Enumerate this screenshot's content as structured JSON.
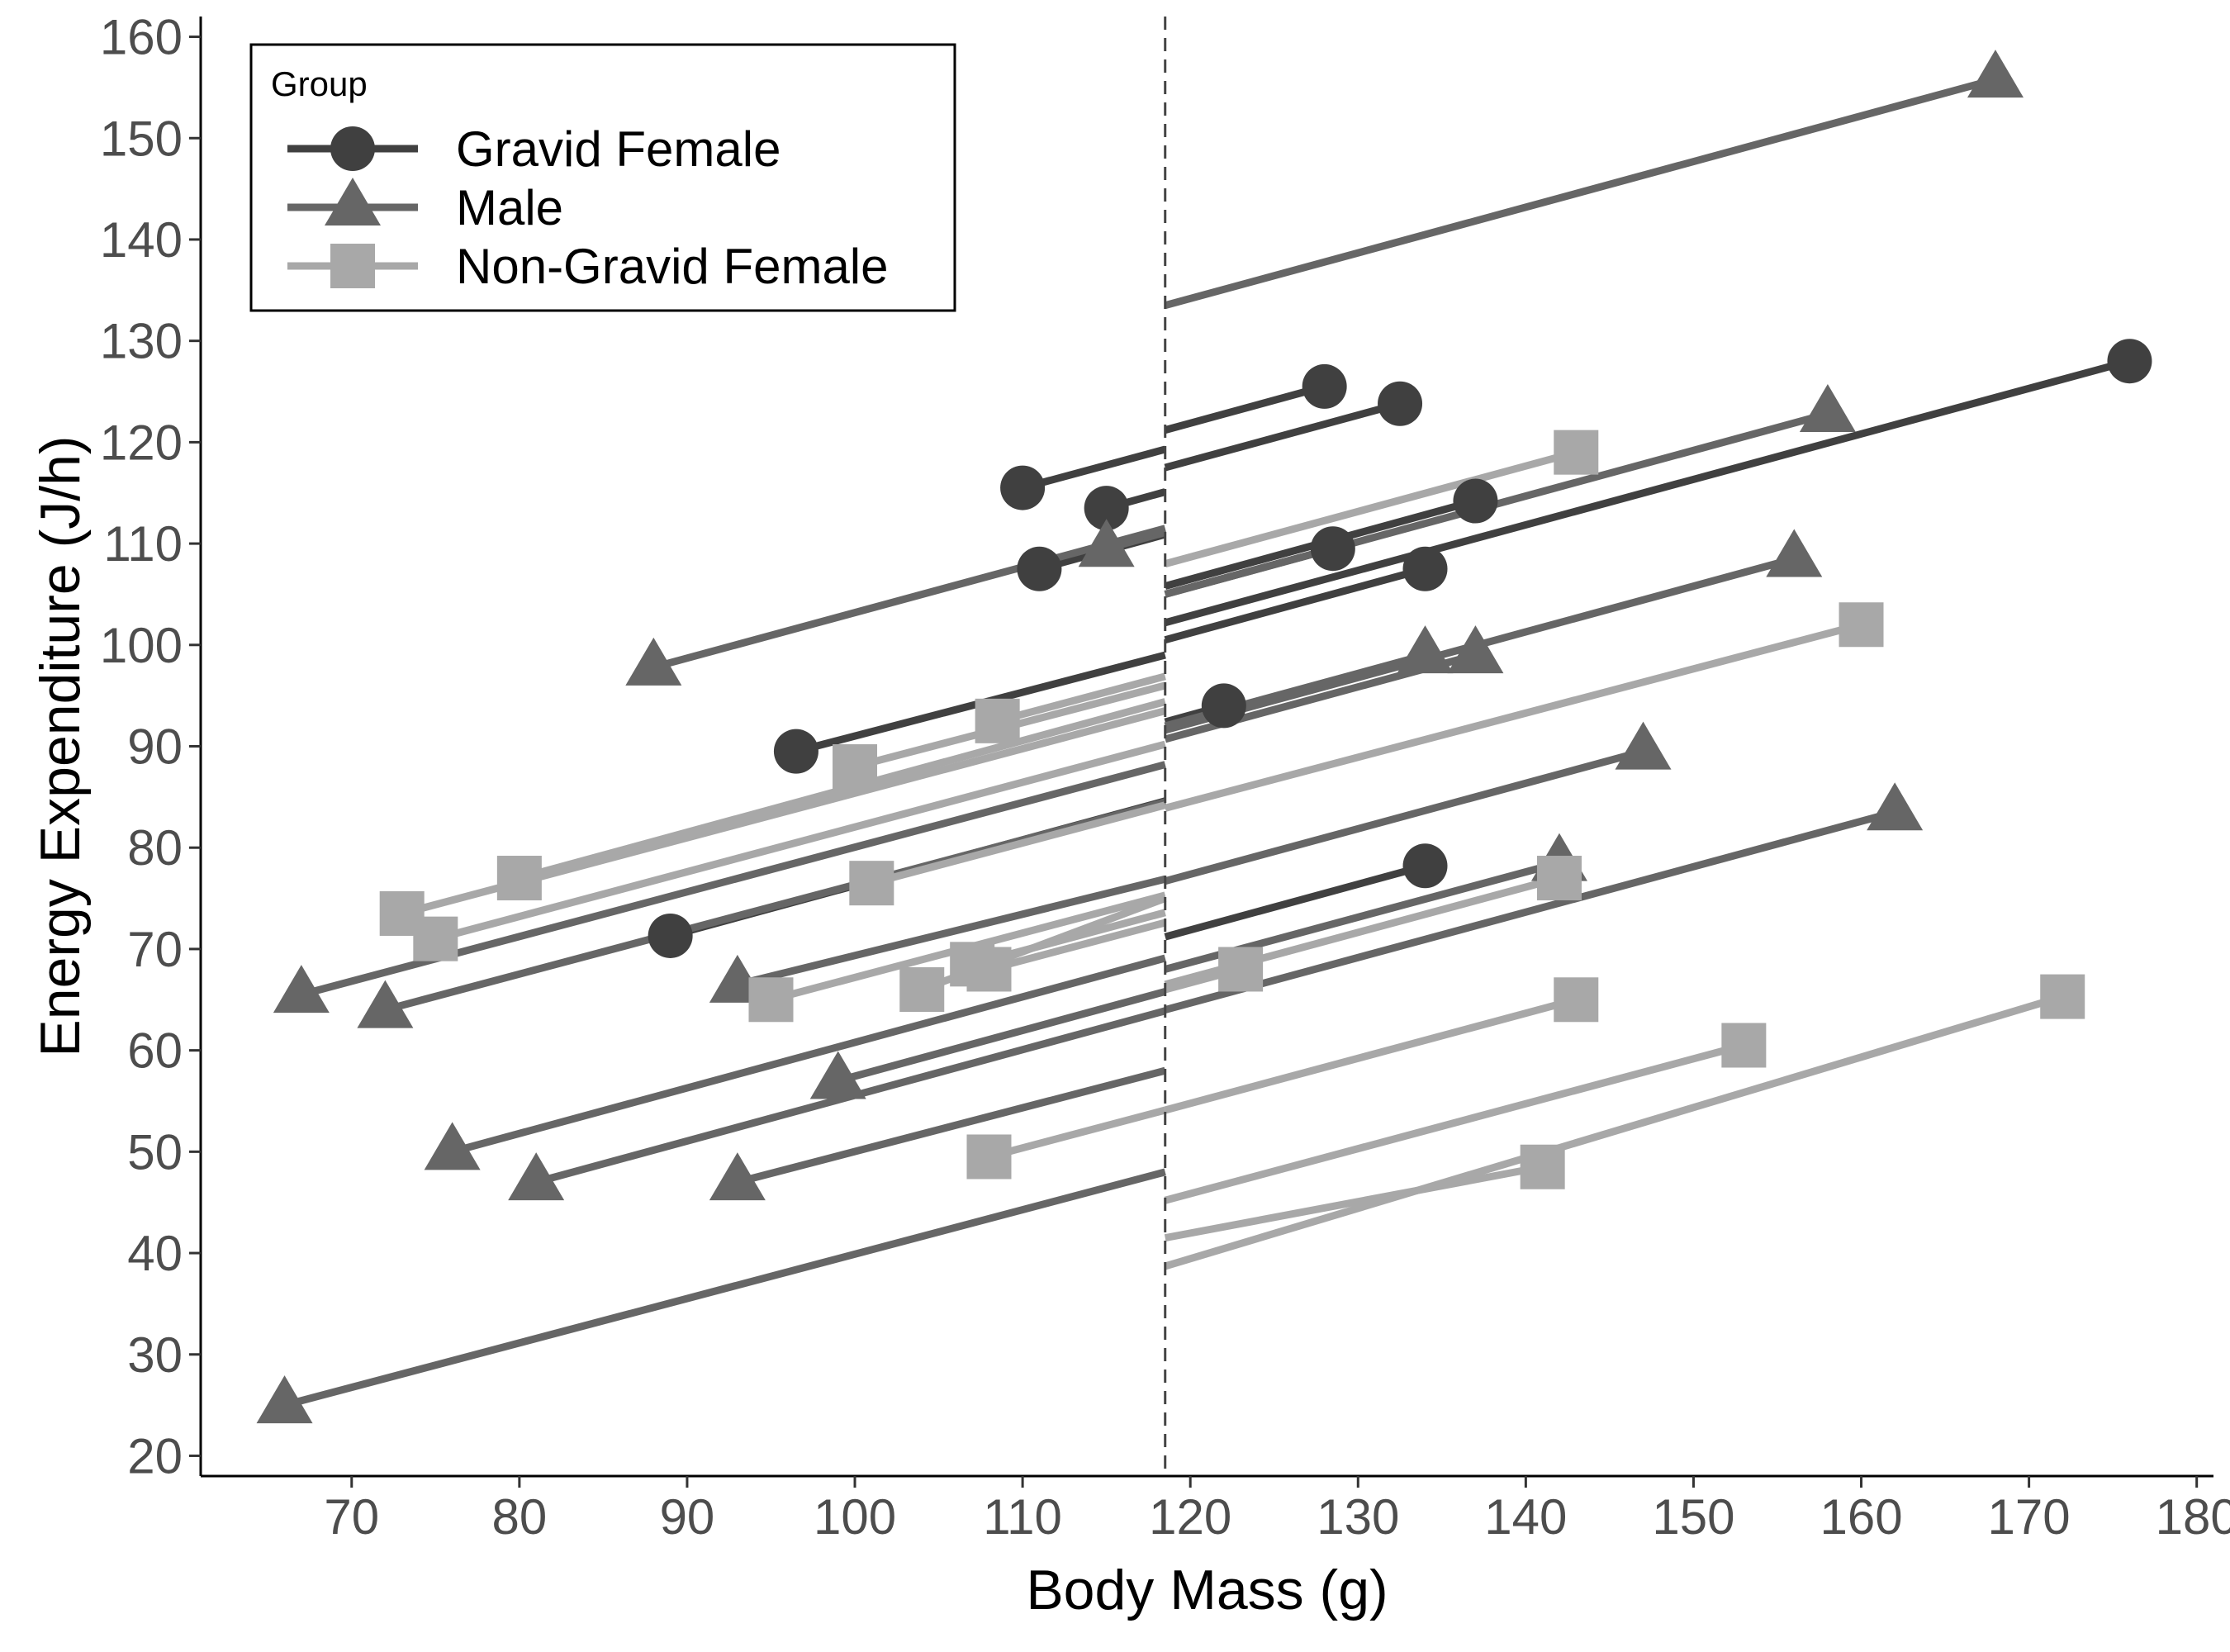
{
  "chart_data": {
    "type": "line",
    "xlabel": "Body Mass (g)",
    "ylabel": "Energy Expenditure (J/h)",
    "xlim": [
      61,
      181
    ],
    "ylim": [
      18,
      162
    ],
    "xticks": [
      70,
      80,
      90,
      100,
      110,
      120,
      130,
      140,
      150,
      160,
      170,
      180
    ],
    "yticks": [
      20,
      30,
      40,
      50,
      60,
      70,
      80,
      90,
      100,
      110,
      120,
      130,
      140,
      150,
      160
    ],
    "reference_line_x": 118.5,
    "grid": false,
    "legend": {
      "title": "Group",
      "placement": "top-left",
      "entries": [
        "Gravid Female",
        "Male",
        "Non-Gravid Female"
      ]
    },
    "series": [
      {
        "name": "Gravid Female",
        "color": "#404040",
        "marker": "circle",
        "segments": [
          {
            "point": [
              128,
              125.5
            ],
            "line_end": [
              118.5,
              121.2
            ]
          },
          {
            "point": [
              132.5,
              123.8
            ],
            "line_end": [
              118.5,
              117.5
            ]
          },
          {
            "point": [
              110,
              115.5
            ],
            "line_end": [
              118.5,
              119.3
            ]
          },
          {
            "point": [
              115,
              113.5
            ],
            "line_end": [
              118.5,
              115.1
            ]
          },
          {
            "point": [
              137,
              114.2
            ],
            "line_end": [
              118.5,
              105.8
            ]
          },
          {
            "point": [
              128.5,
              109.5
            ],
            "line_end": [
              118.5,
              105.0
            ]
          },
          {
            "point": [
              134,
              107.5
            ],
            "line_end": [
              118.5,
              100.5
            ]
          },
          {
            "point": [
              111,
              107.5
            ],
            "line_end": [
              118.5,
              110.9
            ]
          },
          {
            "point": [
              176,
              128.0
            ],
            "line_end": [
              118.5,
              102.2
            ]
          },
          {
            "point": [
              96.5,
              89.5
            ],
            "line_end": [
              118.5,
              99.0
            ]
          },
          {
            "point": [
              122,
              94.0
            ],
            "line_end": [
              118.5,
              92.4
            ]
          },
          {
            "point": [
              89,
              71.3
            ],
            "line_end": [
              118.5,
              84.6
            ]
          },
          {
            "point": [
              134,
              78.2
            ],
            "line_end": [
              118.5,
              71.2
            ]
          }
        ]
      },
      {
        "name": "Male",
        "color": "#666666",
        "marker": "triangle",
        "segments": [
          {
            "point": [
              168,
              155.8
            ],
            "line_end": [
              118.5,
              133.5
            ]
          },
          {
            "point": [
              158,
              122.8
            ],
            "line_end": [
              118.5,
              105.0
            ]
          },
          {
            "point": [
              115,
              109.5
            ],
            "line_end": [
              118.5,
              111.1
            ]
          },
          {
            "point": [
              88,
              97.8
            ],
            "line_end": [
              118.5,
              111.5
            ]
          },
          {
            "point": [
              156,
              108.5
            ],
            "line_end": [
              118.5,
              91.6
            ]
          },
          {
            "point": [
              134,
              99.0
            ],
            "line_end": [
              118.5,
              92.0
            ]
          },
          {
            "point": [
              137,
              99.0
            ],
            "line_end": [
              118.5,
              90.7
            ]
          },
          {
            "point": [
              147,
              89.5
            ],
            "line_end": [
              118.5,
              76.7
            ]
          },
          {
            "point": [
              67,
              65.5
            ],
            "line_end": [
              118.5,
              88.2
            ]
          },
          {
            "point": [
              72,
              64.0
            ],
            "line_end": [
              118.5,
              84.5
            ]
          },
          {
            "point": [
              93,
              66.5
            ],
            "line_end": [
              118.5,
              76.9
            ]
          },
          {
            "point": [
              142,
              78.5
            ],
            "line_end": [
              118.5,
              68.0
            ]
          },
          {
            "point": [
              162,
              83.5
            ],
            "line_end": [
              118.5,
              64.0
            ]
          },
          {
            "point": [
              99,
              57.0
            ],
            "line_end": [
              118.5,
              65.8
            ]
          },
          {
            "point": [
              76,
              50.0
            ],
            "line_end": [
              118.5,
              69.1
            ]
          },
          {
            "point": [
              81,
              47.0
            ],
            "line_end": [
              118.5,
              63.9
            ]
          },
          {
            "point": [
              93,
              47.0
            ],
            "line_end": [
              118.5,
              58.0
            ]
          },
          {
            "point": [
              66,
              25.0
            ],
            "line_end": [
              118.5,
              48.0
            ]
          }
        ]
      },
      {
        "name": "Non-Gravid Female",
        "color": "#a8a8a8",
        "marker": "square",
        "segments": [
          {
            "point": [
              143,
              119.0
            ],
            "line_end": [
              118.5,
              108.0
            ]
          },
          {
            "point": [
              160,
              102.0
            ],
            "line_end": [
              118.5,
              83.9
            ]
          },
          {
            "point": [
              108.5,
              92.5
            ],
            "line_end": [
              118.5,
              96.9
            ]
          },
          {
            "point": [
              100,
              88.0
            ],
            "line_end": [
              118.5,
              96.0
            ]
          },
          {
            "point": [
              73,
              73.5
            ],
            "line_end": [
              118.5,
              93.5
            ]
          },
          {
            "point": [
              80,
              77.0
            ],
            "line_end": [
              118.5,
              94.4
            ]
          },
          {
            "point": [
              75,
              71.0
            ],
            "line_end": [
              118.5,
              90.2
            ]
          },
          {
            "point": [
              101,
              76.5
            ],
            "line_end": [
              118.5,
              84.2
            ]
          },
          {
            "point": [
              107,
              68.5
            ],
            "line_end": [
              118.5,
              73.6
            ]
          },
          {
            "point": [
              108,
              68.0
            ],
            "line_end": [
              118.5,
              72.6
            ]
          },
          {
            "point": [
              104,
              66.0
            ],
            "line_end": [
              118.5,
              75.0
            ]
          },
          {
            "point": [
              95,
              65.0
            ],
            "line_end": [
              118.5,
              75.3
            ]
          },
          {
            "point": [
              142,
              77.0
            ],
            "line_end": [
              118.5,
              66.5
            ]
          },
          {
            "point": [
              123,
              68.0
            ],
            "line_end": [
              118.5,
              66.0
            ]
          },
          {
            "point": [
              108,
              49.5
            ],
            "line_end": [
              118.5,
              54.1
            ]
          },
          {
            "point": [
              143,
              65.0
            ],
            "line_end": [
              118.5,
              54.1
            ]
          },
          {
            "point": [
              153,
              60.5
            ],
            "line_end": [
              118.5,
              45.2
            ]
          },
          {
            "point": [
              141,
              48.5
            ],
            "line_end": [
              118.5,
              41.5
            ]
          },
          {
            "point": [
              172,
              65.3
            ],
            "line_end": [
              118.5,
              38.7
            ]
          }
        ]
      }
    ]
  }
}
